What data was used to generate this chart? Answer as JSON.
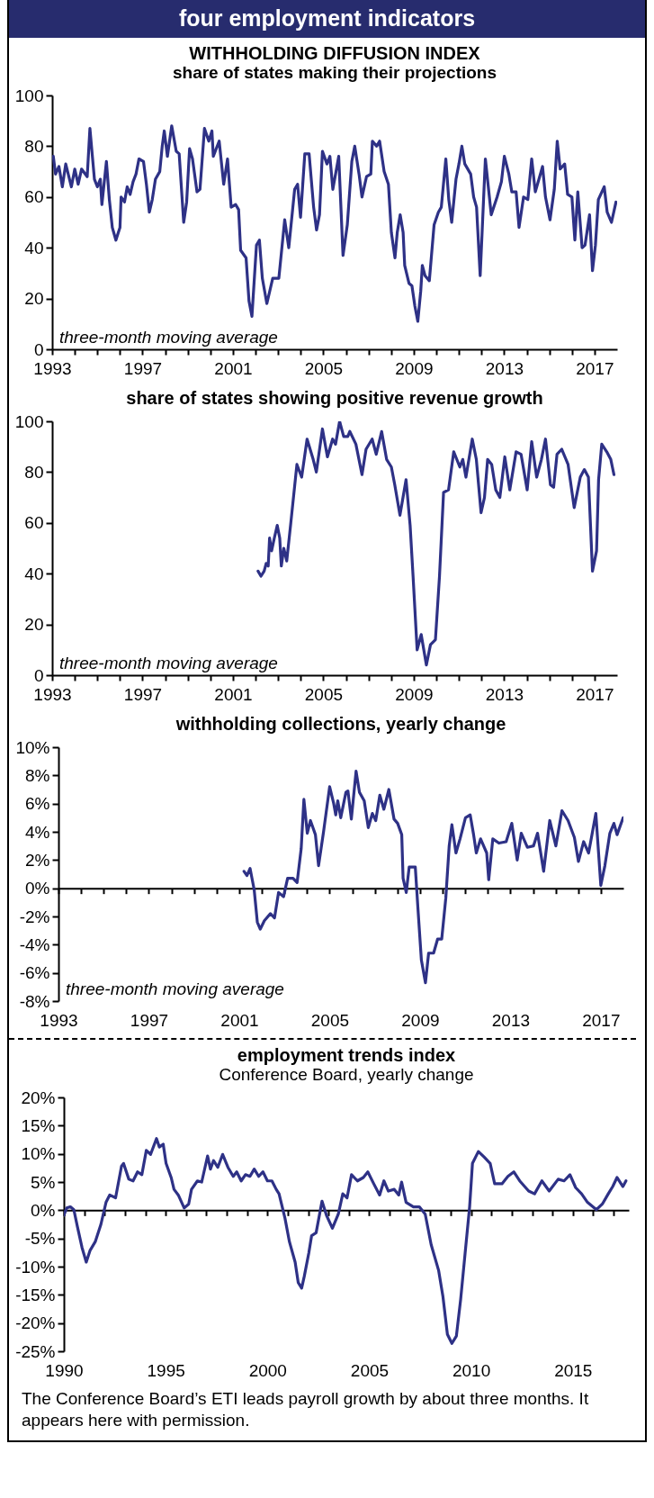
{
  "chart_data": [
    {
      "type": "other",
      "title": "four employment indicators",
      "annotations": [
        "The Conference Board’s ETI leads payroll growth by about three months. It appears here with permission."
      ]
    },
    {
      "type": "line",
      "title": "WITHHOLDING DIFFUSION INDEX",
      "subtitle": "share of states making their projections",
      "color": "#2e3186",
      "annotations": [
        "three-month moving average"
      ],
      "xlim": [
        1993,
        2018
      ],
      "xticks": [
        1993,
        {
          "value": 1994,
          "label": null
        },
        {
          "value": 1995,
          "label": null
        },
        {
          "value": 1996,
          "label": null
        },
        1997,
        {
          "value": 1998,
          "label": null
        },
        {
          "value": 1999,
          "label": null
        },
        {
          "value": 2000,
          "label": null
        },
        2001,
        {
          "value": 2002,
          "label": null
        },
        {
          "value": 2003,
          "label": null
        },
        {
          "value": 2004,
          "label": null
        },
        2005,
        {
          "value": 2006,
          "label": null
        },
        {
          "value": 2007,
          "label": null
        },
        {
          "value": 2008,
          "label": null
        },
        2009,
        {
          "value": 2010,
          "label": null
        },
        {
          "value": 2011,
          "label": null
        },
        {
          "value": 2012,
          "label": null
        },
        2013,
        {
          "value": 2014,
          "label": null
        },
        {
          "value": 2015,
          "label": null
        },
        {
          "value": 2016,
          "label": null
        },
        2017
      ],
      "ylim": [
        0,
        100
      ],
      "yticks": [
        0,
        20,
        40,
        60,
        80,
        100
      ],
      "x": [
        1993.05,
        1993.15,
        1993.3,
        1993.45,
        1993.6,
        1993.85,
        1994.0,
        1994.15,
        1994.3,
        1994.55,
        1994.67,
        1994.87,
        1995.0,
        1995.13,
        1995.2,
        1995.4,
        1995.53,
        1995.66,
        1995.82,
        1996.0,
        1996.05,
        1996.2,
        1996.32,
        1996.45,
        1996.58,
        1996.71,
        1996.84,
        1997.04,
        1997.17,
        1997.3,
        1997.43,
        1997.57,
        1997.76,
        1997.87,
        1997.96,
        1998.1,
        1998.29,
        1998.49,
        1998.62,
        1998.82,
        1998.95,
        1999.08,
        1999.21,
        1999.41,
        1999.54,
        1999.74,
        1999.93,
        2000.07,
        2000.13,
        2000.39,
        2000.59,
        2000.76,
        2000.92,
        2001.12,
        2001.25,
        2001.34,
        2001.58,
        2001.71,
        2001.84,
        2002.04,
        2002.17,
        2002.3,
        2002.5,
        2002.76,
        2003.03,
        2003.29,
        2003.47,
        2003.73,
        2003.86,
        2003.99,
        2004.18,
        2004.37,
        2004.57,
        2004.7,
        2004.83,
        2004.96,
        2005.16,
        2005.29,
        2005.42,
        2005.68,
        2005.87,
        2006.06,
        2006.26,
        2006.39,
        2006.58,
        2006.71,
        2006.91,
        2007.1,
        2007.17,
        2007.36,
        2007.49,
        2007.69,
        2007.88,
        2008.01,
        2008.17,
        2008.27,
        2008.4,
        2008.53,
        2008.6,
        2008.79,
        2008.92,
        2009.05,
        2009.18,
        2009.31,
        2009.38,
        2009.5,
        2009.69,
        2009.9,
        2010.09,
        2010.22,
        2010.42,
        2010.55,
        2010.68,
        2010.87,
        2011.0,
        2011.13,
        2011.26,
        2011.52,
        2011.65,
        2011.78,
        2011.94,
        2012.17,
        2012.43,
        2012.69,
        2012.88,
        2013.01,
        2013.21,
        2013.34,
        2013.53,
        2013.66,
        2013.86,
        2014.05,
        2014.22,
        2014.38,
        2014.7,
        2014.83,
        2015.03,
        2015.22,
        2015.35,
        2015.48,
        2015.68,
        2015.81,
        2016.0,
        2016.13,
        2016.26,
        2016.45,
        2016.58,
        2016.78,
        2016.91,
        2017.04,
        2017.17,
        2017.43,
        2017.56,
        2017.75,
        2017.95
      ],
      "values": [
        76,
        69,
        72,
        64,
        73,
        64,
        71,
        65,
        71,
        68,
        87,
        67,
        64,
        67,
        57,
        74,
        59,
        48,
        43,
        48,
        60,
        58,
        64,
        61,
        66,
        69,
        75,
        74,
        65,
        54,
        59,
        67,
        70,
        80,
        86,
        76,
        88,
        78,
        77,
        50,
        58,
        79,
        75,
        62,
        63,
        87,
        82,
        86,
        76,
        82,
        65,
        75,
        56,
        57,
        55,
        39,
        36,
        19,
        13,
        41,
        43,
        28,
        18,
        28,
        28,
        51,
        40,
        63,
        65,
        52,
        77,
        77,
        56,
        47,
        53,
        78,
        73,
        76,
        63,
        76,
        37,
        49,
        74,
        80,
        69,
        60,
        68,
        69,
        82,
        80,
        82,
        70,
        65,
        46,
        36,
        46,
        53,
        46,
        33,
        26,
        25,
        17,
        11,
        23,
        33,
        29,
        27,
        49,
        54,
        56,
        75,
        59,
        50,
        67,
        73,
        80,
        73,
        69,
        60,
        56,
        29,
        75,
        53,
        60,
        66,
        76,
        69,
        62,
        62,
        48,
        60,
        59,
        75,
        62,
        72,
        60,
        51,
        63,
        82,
        71,
        73,
        61,
        60,
        43,
        62,
        40,
        41,
        53,
        31,
        41,
        59,
        64,
        54,
        50,
        58
      ]
    },
    {
      "type": "line",
      "title": "share of states showing positive revenue growth",
      "color": "#2e3186",
      "annotations": [
        "three-month moving average"
      ],
      "xlim": [
        1993,
        2018
      ],
      "xticks": [
        1993,
        {
          "value": 1994,
          "label": null
        },
        {
          "value": 1995,
          "label": null
        },
        {
          "value": 1996,
          "label": null
        },
        1997,
        {
          "value": 1998,
          "label": null
        },
        {
          "value": 1999,
          "label": null
        },
        {
          "value": 2000,
          "label": null
        },
        2001,
        {
          "value": 2002,
          "label": null
        },
        {
          "value": 2003,
          "label": null
        },
        {
          "value": 2004,
          "label": null
        },
        2005,
        {
          "value": 2006,
          "label": null
        },
        {
          "value": 2007,
          "label": null
        },
        {
          "value": 2008,
          "label": null
        },
        2009,
        {
          "value": 2010,
          "label": null
        },
        {
          "value": 2011,
          "label": null
        },
        {
          "value": 2012,
          "label": null
        },
        2013,
        {
          "value": 2014,
          "label": null
        },
        {
          "value": 2015,
          "label": null
        },
        {
          "value": 2016,
          "label": null
        },
        2017
      ],
      "ylim": [
        0,
        100
      ],
      "yticks": [
        0,
        20,
        40,
        60,
        80,
        100
      ],
      "x": [
        2002.11,
        2002.24,
        2002.38,
        2002.47,
        2002.56,
        2002.62,
        2002.71,
        2002.83,
        2002.96,
        2003.07,
        2003.14,
        2003.25,
        2003.38,
        2003.56,
        2003.83,
        2004.04,
        2004.28,
        2004.55,
        2004.69,
        2004.96,
        2005.18,
        2005.41,
        2005.54,
        2005.72,
        2005.9,
        2006.08,
        2006.17,
        2006.44,
        2006.71,
        2006.89,
        2007.16,
        2007.34,
        2007.58,
        2007.8,
        2008.01,
        2008.16,
        2008.39,
        2008.66,
        2008.84,
        2008.97,
        2009.15,
        2009.33,
        2009.56,
        2009.74,
        2009.96,
        2010.14,
        2010.32,
        2010.54,
        2010.77,
        2011.04,
        2011.17,
        2011.31,
        2011.59,
        2011.77,
        2011.98,
        2012.13,
        2012.27,
        2012.45,
        2012.63,
        2012.81,
        2013.03,
        2013.25,
        2013.53,
        2013.75,
        2014.02,
        2014.22,
        2014.44,
        2014.65,
        2014.83,
        2015.05,
        2015.19,
        2015.34,
        2015.55,
        2015.83,
        2016.1,
        2016.37,
        2016.55,
        2016.73,
        2016.91,
        2017.09,
        2017.18,
        2017.32,
        2017.54,
        2017.72,
        2017.86
      ],
      "values": [
        41,
        39,
        41,
        44,
        43,
        54,
        49,
        54,
        59,
        54,
        43,
        50,
        45,
        60,
        83,
        78,
        93,
        85,
        80,
        97,
        86,
        93,
        91,
        100,
        94,
        94,
        96,
        91,
        79,
        89,
        93,
        87,
        96,
        85,
        82,
        75,
        63,
        77,
        59,
        39,
        10,
        16,
        4,
        12,
        14,
        39,
        72,
        73,
        88,
        82,
        85,
        78,
        93,
        85,
        64,
        70,
        85,
        83,
        73,
        70,
        86,
        73,
        88,
        87,
        73,
        92,
        78,
        85,
        93,
        75,
        74,
        87,
        89,
        83,
        66,
        78,
        81,
        78,
        41,
        49,
        77,
        91,
        88,
        85,
        79
      ]
    },
    {
      "type": "line",
      "title": "withholding collections, yearly change",
      "color": "#2e3186",
      "annotations": [
        "three-month moving average"
      ],
      "xlim": [
        1993,
        2018
      ],
      "xticks": [
        1993,
        {
          "value": 1994,
          "label": null
        },
        {
          "value": 1995,
          "label": null
        },
        {
          "value": 1996,
          "label": null
        },
        1997,
        {
          "value": 1998,
          "label": null
        },
        {
          "value": 1999,
          "label": null
        },
        {
          "value": 2000,
          "label": null
        },
        2001,
        {
          "value": 2002,
          "label": null
        },
        {
          "value": 2003,
          "label": null
        },
        {
          "value": 2004,
          "label": null
        },
        2005,
        {
          "value": 2006,
          "label": null
        },
        {
          "value": 2007,
          "label": null
        },
        {
          "value": 2008,
          "label": null
        },
        2009,
        {
          "value": 2010,
          "label": null
        },
        {
          "value": 2011,
          "label": null
        },
        {
          "value": 2012,
          "label": null
        },
        2013,
        {
          "value": 2014,
          "label": null
        },
        {
          "value": 2015,
          "label": null
        },
        {
          "value": 2016,
          "label": null
        },
        2017
      ],
      "ylim": [
        -8,
        10
      ],
      "yticks": [
        {
          "value": -8,
          "label": "-8%"
        },
        {
          "value": -6,
          "label": "-6%"
        },
        {
          "value": -4,
          "label": "-4%"
        },
        {
          "value": -2,
          "label": "-2%"
        },
        {
          "value": 0,
          "label": "0%"
        },
        {
          "value": 2,
          "label": "2%"
        },
        {
          "value": 4,
          "label": "4%"
        },
        {
          "value": 6,
          "label": "6%"
        },
        {
          "value": 8,
          "label": "8%"
        },
        {
          "value": 10,
          "label": "10%"
        }
      ],
      "x": [
        2001.21,
        2001.34,
        2001.48,
        2001.66,
        2001.8,
        2001.93,
        2002.11,
        2002.38,
        2002.56,
        2002.74,
        2002.96,
        2003.14,
        2003.38,
        2003.56,
        2003.74,
        2003.86,
        2004.01,
        2004.15,
        2004.37,
        2004.51,
        2004.73,
        2005.0,
        2005.18,
        2005.27,
        2005.36,
        2005.49,
        2005.72,
        2005.81,
        2005.96,
        2006.17,
        2006.32,
        2006.53,
        2006.71,
        2006.89,
        2007.04,
        2007.22,
        2007.4,
        2007.62,
        2007.85,
        2008.01,
        2008.19,
        2008.25,
        2008.39,
        2008.52,
        2008.79,
        2008.91,
        2009.06,
        2009.24,
        2009.38,
        2009.6,
        2009.78,
        2009.96,
        2010.14,
        2010.29,
        2010.41,
        2010.59,
        2010.77,
        2011.01,
        2011.22,
        2011.37,
        2011.49,
        2011.68,
        2011.95,
        2012.04,
        2012.22,
        2012.49,
        2012.81,
        2013.06,
        2013.3,
        2013.48,
        2013.75,
        2014.02,
        2014.2,
        2014.47,
        2014.74,
        2015.01,
        2015.28,
        2015.55,
        2015.83,
        2016.01,
        2016.24,
        2016.46,
        2016.78,
        2017.0,
        2017.18,
        2017.4,
        2017.58,
        2017.72,
        2017.99
      ],
      "values": [
        1.2,
        0.9,
        1.4,
        -0.1,
        -2.4,
        -2.9,
        -2.3,
        -1.8,
        -2.1,
        -0.3,
        -0.6,
        0.7,
        0.7,
        0.4,
        2.8,
        6.3,
        3.9,
        4.8,
        3.8,
        1.6,
        4,
        7.2,
        6,
        5.2,
        6.2,
        5,
        6.8,
        6.9,
        4.9,
        8.3,
        6.8,
        6.2,
        4.3,
        5.3,
        4.8,
        6.6,
        5.6,
        7,
        4.9,
        4.6,
        3.8,
        0.7,
        -0.3,
        1.5,
        1.5,
        -1.5,
        -5.1,
        -6.7,
        -4.6,
        -4.6,
        -3.6,
        -3.6,
        -0.7,
        3,
        4.5,
        2.5,
        3.5,
        5,
        5.2,
        3.8,
        2.5,
        3.5,
        2.5,
        0.6,
        3.5,
        3.2,
        3.3,
        4.6,
        2,
        3.9,
        2.9,
        3,
        3.9,
        1.2,
        4.8,
        3,
        5.5,
        4.8,
        3.6,
        1.9,
        3.3,
        2.5,
        5.3,
        0.2,
        1.6,
        3.9,
        4.6,
        3.8,
        5
      ]
    },
    {
      "type": "line",
      "title": "employment trends index",
      "subtitle": "Conference Board, yearly change",
      "color": "#2e3186",
      "xlim": [
        1990,
        2017.75
      ],
      "xticks": [
        1990,
        {
          "value": 1991,
          "label": null
        },
        {
          "value": 1992,
          "label": null
        },
        {
          "value": 1993,
          "label": null
        },
        {
          "value": 1994,
          "label": null
        },
        1995,
        {
          "value": 1996,
          "label": null
        },
        {
          "value": 1997,
          "label": null
        },
        {
          "value": 1998,
          "label": null
        },
        {
          "value": 1999,
          "label": null
        },
        2000,
        {
          "value": 2001,
          "label": null
        },
        {
          "value": 2002,
          "label": null
        },
        {
          "value": 2003,
          "label": null
        },
        {
          "value": 2004,
          "label": null
        },
        2005,
        {
          "value": 2006,
          "label": null
        },
        {
          "value": 2007,
          "label": null
        },
        {
          "value": 2008,
          "label": null
        },
        {
          "value": 2009,
          "label": null
        },
        2010,
        {
          "value": 2011,
          "label": null
        },
        {
          "value": 2012,
          "label": null
        },
        {
          "value": 2013,
          "label": null
        },
        {
          "value": 2014,
          "label": null
        },
        2015,
        {
          "value": 2016,
          "label": null
        },
        {
          "value": 2017,
          "label": null
        }
      ],
      "ylim": [
        -25,
        20
      ],
      "yticks": [
        {
          "value": -25,
          "label": "-25%"
        },
        {
          "value": -20,
          "label": "-20%"
        },
        {
          "value": -15,
          "label": "-15%"
        },
        {
          "value": -10,
          "label": "-10%"
        },
        {
          "value": -5,
          "label": "-5%"
        },
        {
          "value": 0,
          "label": "0%"
        },
        {
          "value": 5,
          "label": "5%"
        },
        {
          "value": 10,
          "label": "10%"
        },
        {
          "value": 15,
          "label": "15%"
        },
        {
          "value": 20,
          "label": "20%"
        }
      ],
      "x": [
        1990.0,
        1990.14,
        1990.32,
        1990.49,
        1990.67,
        1990.89,
        1991.1,
        1991.29,
        1991.54,
        1991.82,
        1992.07,
        1992.25,
        1992.54,
        1992.83,
        1992.93,
        1993.19,
        1993.4,
        1993.62,
        1993.83,
        1994.05,
        1994.26,
        1994.55,
        1994.69,
        1994.88,
        1995.02,
        1995.27,
        1995.41,
        1995.62,
        1995.91,
        1996.13,
        1996.27,
        1996.56,
        1996.77,
        1997.06,
        1997.2,
        1997.35,
        1997.56,
        1997.8,
        1998.06,
        1998.32,
        1998.49,
        1998.71,
        1998.92,
        1999.14,
        1999.35,
        1999.57,
        1999.78,
        2000.0,
        2000.22,
        2000.43,
        2000.57,
        2000.86,
        2001.08,
        2001.36,
        2001.51,
        2001.68,
        2001.81,
        2002.03,
        2002.17,
        2002.39,
        2002.68,
        2002.9,
        2003.19,
        2003.48,
        2003.7,
        2003.91,
        2004.13,
        2004.42,
        2004.71,
        2004.93,
        2005.22,
        2005.51,
        2005.72,
        2005.94,
        2006.23,
        2006.45,
        2006.59,
        2006.81,
        2007.17,
        2007.46,
        2007.75,
        2008.04,
        2008.41,
        2008.62,
        2008.84,
        2009.06,
        2009.28,
        2009.49,
        2009.71,
        2009.93,
        2010.07,
        2010.36,
        2010.65,
        2010.94,
        2011.16,
        2011.52,
        2011.81,
        2012.1,
        2012.39,
        2012.83,
        2013.12,
        2013.48,
        2013.84,
        2014.28,
        2014.57,
        2014.86,
        2015.14,
        2015.43,
        2015.72,
        2016.16,
        2016.45,
        2016.74,
        2016.96,
        2017.17,
        2017.46,
        2017.61
      ],
      "values": [
        -0.9,
        0.4,
        0.6,
        0.1,
        -3,
        -6.6,
        -9.2,
        -7.1,
        -5.6,
        -2.5,
        1.4,
        2.7,
        2.2,
        7.8,
        8.3,
        5.5,
        5.2,
        6.8,
        6.3,
        10.6,
        9.9,
        12.7,
        11.2,
        11.7,
        8.3,
        5.8,
        3.7,
        2.7,
        0.4,
        1.1,
        3.7,
        5.2,
        5,
        9.6,
        7.3,
        8.8,
        7.6,
        9.9,
        7.6,
        6,
        6.8,
        5.2,
        6.3,
        6,
        7.3,
        6,
        6.8,
        5.2,
        5.2,
        3.7,
        2.9,
        -1.4,
        -5.6,
        -9.2,
        -12.8,
        -13.8,
        -11.7,
        -7.6,
        -4.5,
        -4,
        1.6,
        -0.9,
        -3.2,
        -0.7,
        2.9,
        2.2,
        6.3,
        5.2,
        5.8,
        6.8,
        4.7,
        2.7,
        5.2,
        3.4,
        3.7,
        2.7,
        5,
        1.4,
        0.6,
        0.6,
        -0.7,
        -6.1,
        -10.7,
        -15.3,
        -22,
        -23.6,
        -22.3,
        -15.8,
        -7.6,
        0.6,
        8.3,
        10.4,
        9.4,
        8.3,
        4.7,
        4.7,
        6,
        6.8,
        5.2,
        3.4,
        2.9,
        5.2,
        3.4,
        5.5,
        5.2,
        6.3,
        4,
        2.9,
        1.4,
        0.1,
        1.1,
        2.9,
        4.2,
        5.8,
        4.2,
        5.2
      ]
    }
  ]
}
